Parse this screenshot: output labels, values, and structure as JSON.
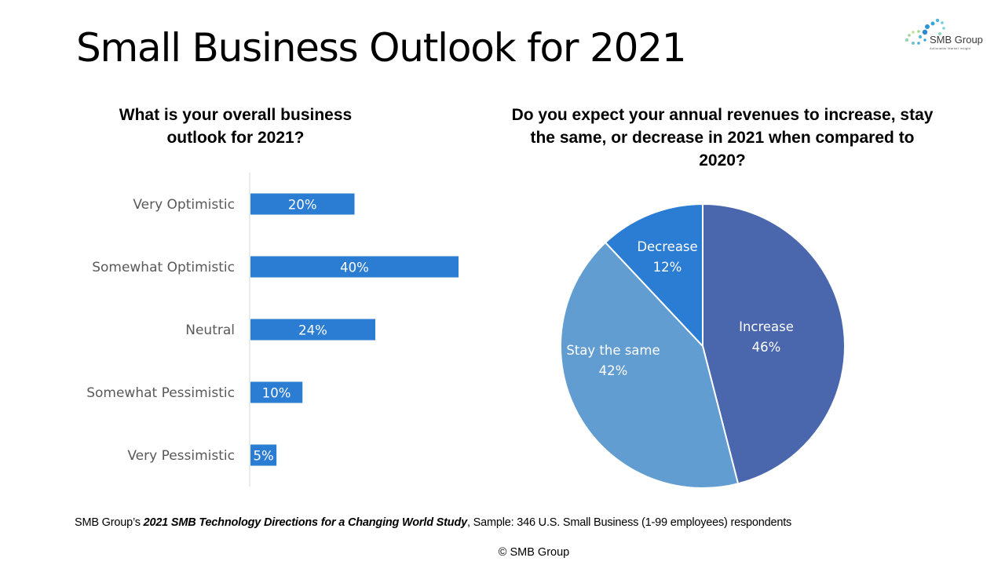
{
  "slide": {
    "title": "Small Business Outlook for 2021",
    "logo": {
      "name": "SMB Group",
      "tagline": "Actionable Market Insight"
    },
    "source": {
      "prefix": "SMB Group’s ",
      "study": "2021 SMB Technology Directions for a Changing World Study",
      "suffix": ", Sample: 346 U.S. Small Business (1-99 employees) respondents"
    },
    "copyright": "© SMB Group"
  },
  "colors": {
    "bar": "#2b7cd3",
    "increase": "#4a67ae",
    "stay_same": "#629dd1",
    "decrease": "#2b7cd3",
    "axis": "#d9d9d9",
    "category_text": "#595959"
  },
  "chart_data": [
    {
      "type": "bar",
      "orientation": "horizontal",
      "title_lines": [
        "What is your overall business",
        "outlook for 2021?"
      ],
      "categories": [
        "Very Optimistic",
        "Somewhat Optimistic",
        "Neutral",
        "Somewhat Pessimistic",
        "Very Pessimistic"
      ],
      "values": [
        20,
        40,
        24,
        10,
        5
      ],
      "data_labels": [
        "20%",
        "40%",
        "24%",
        "10%",
        "5%"
      ],
      "unit": "%",
      "xlim": [
        0,
        40
      ],
      "grid": false,
      "legend": "none"
    },
    {
      "type": "pie",
      "title_lines": [
        "Do you expect your annual revenues to increase, stay",
        "the same, or decrease in 2021 when compared to",
        "2020?"
      ],
      "slices": [
        {
          "label": "Increase",
          "value": 46,
          "data_label": "46%"
        },
        {
          "label": "Stay the same",
          "value": 42,
          "data_label": "42%"
        },
        {
          "label": "Decrease",
          "value": 12,
          "data_label": "12%"
        }
      ],
      "start_angle": "12 o'clock, clockwise",
      "legend": "none"
    }
  ]
}
